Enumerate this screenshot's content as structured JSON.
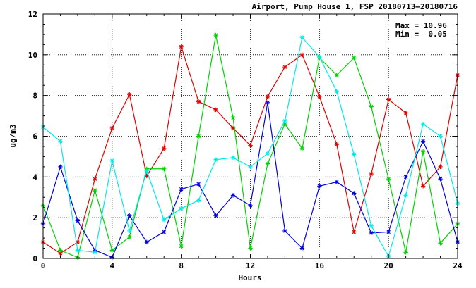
{
  "chart_data": {
    "type": "line",
    "title": "Airport, Pump House 1, FSP 20180713–20180716",
    "xlabel": "Hours",
    "ylabel": "ug/m3",
    "xlim": [
      0,
      24
    ],
    "ylim": [
      0,
      12
    ],
    "xticks": [
      0,
      4,
      8,
      12,
      16,
      20,
      24
    ],
    "yticks": [
      0,
      2,
      4,
      6,
      8,
      10,
      12
    ],
    "grid": true,
    "stats": {
      "max_label": "Max = 10.96",
      "min_label": "Min =  0.05"
    },
    "x": [
      0,
      1,
      2,
      3,
      4,
      5,
      6,
      7,
      8,
      9,
      10,
      11,
      12,
      13,
      14,
      15,
      16,
      17,
      18,
      19,
      20,
      21,
      22,
      23,
      24
    ],
    "series": [
      {
        "color": "#e00000",
        "values": [
          0.8,
          0.25,
          0.8,
          3.9,
          6.4,
          8.05,
          4.05,
          5.4,
          10.4,
          7.7,
          7.3,
          6.4,
          5.55,
          7.95,
          9.4,
          10.0,
          7.95,
          5.6,
          1.3,
          4.15,
          7.8,
          7.15,
          3.55,
          4.5,
          9.0
        ]
      },
      {
        "color": "#00d000",
        "values": [
          2.6,
          0.4,
          0.05,
          3.35,
          0.4,
          1.05,
          4.4,
          4.4,
          0.6,
          6.0,
          10.96,
          6.9,
          0.5,
          4.65,
          6.6,
          5.4,
          9.85,
          9.0,
          9.85,
          7.45,
          3.9,
          0.3,
          5.25,
          0.75,
          1.7
        ]
      },
      {
        "color": "#0000e0",
        "values": [
          1.7,
          4.5,
          1.85,
          0.4,
          0.05,
          2.1,
          0.8,
          1.3,
          3.4,
          3.65,
          2.1,
          3.1,
          2.6,
          7.65,
          1.35,
          0.5,
          3.55,
          3.75,
          3.2,
          1.25,
          1.3,
          4.0,
          5.75,
          3.9,
          0.8
        ]
      },
      {
        "color": "#00e8e8",
        "values": [
          6.45,
          5.75,
          0.4,
          0.3,
          4.8,
          1.35,
          4.3,
          1.9,
          2.45,
          2.85,
          4.85,
          4.95,
          4.5,
          5.15,
          6.75,
          10.85,
          9.9,
          8.2,
          5.1,
          1.6,
          0.1,
          3.1,
          6.6,
          6.0,
          2.7
        ]
      }
    ]
  }
}
